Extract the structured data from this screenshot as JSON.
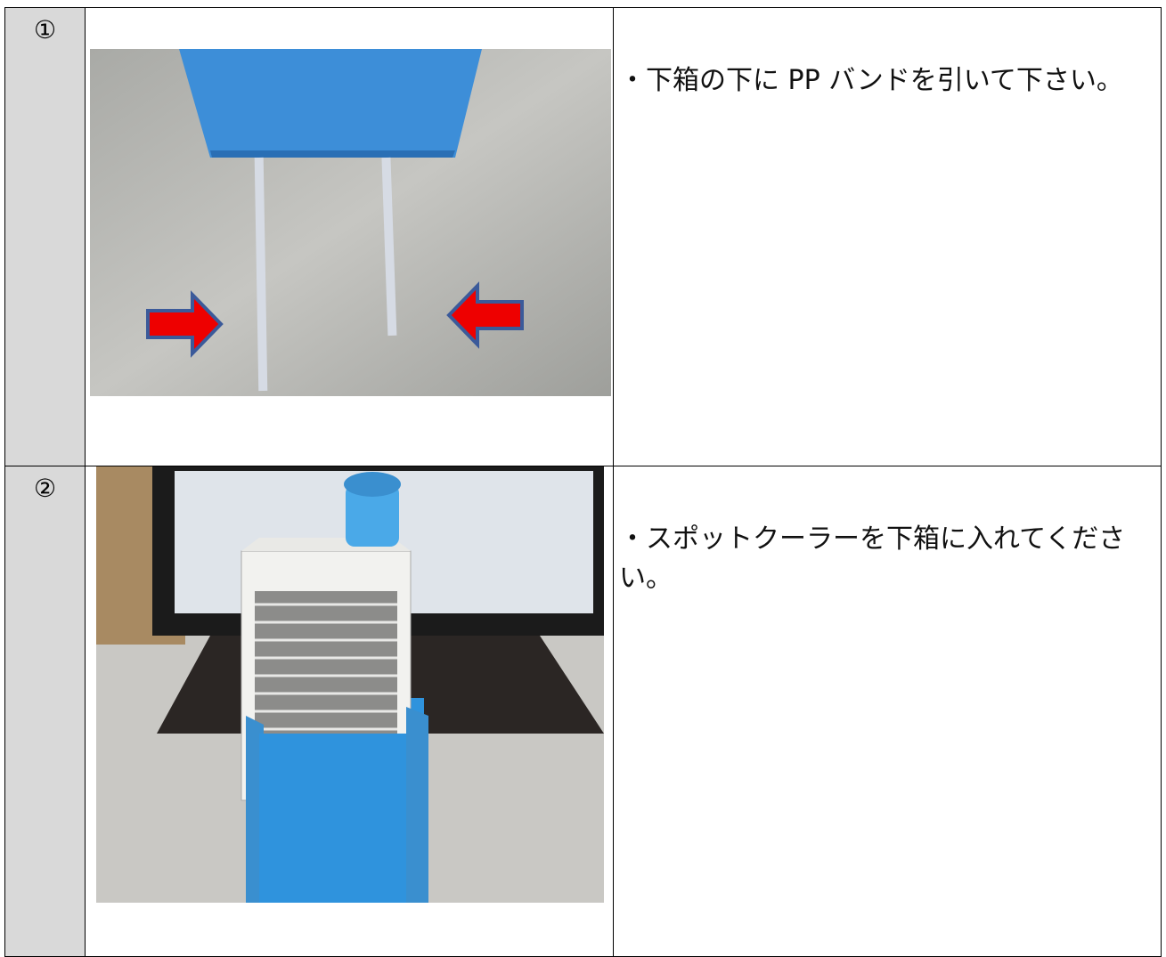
{
  "table": {
    "rows": [
      {
        "number": "①",
        "text": "・下箱の下に PP バンドを引いて下さい。"
      },
      {
        "number": "②",
        "text": "・スポットクーラーを下箱に入れてください。"
      }
    ]
  }
}
